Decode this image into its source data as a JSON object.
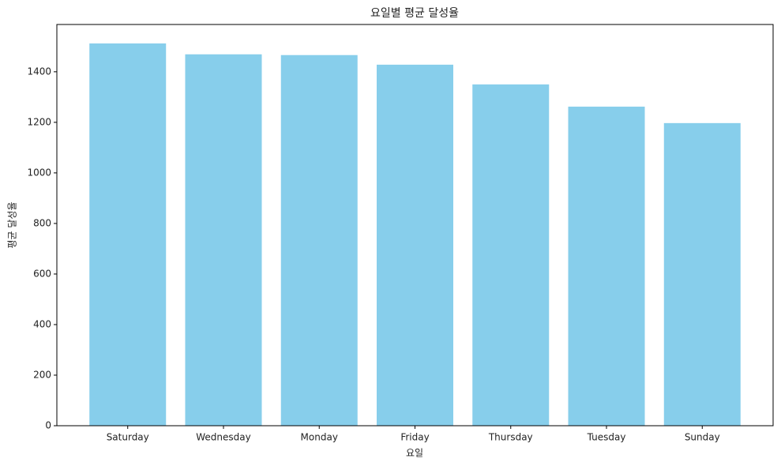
{
  "chart_data": {
    "type": "bar",
    "title": "요일별 평균 달성율",
    "x_label": "요일",
    "y_label": "평균 달성율",
    "categories": [
      "Saturday",
      "Wednesday",
      "Monday",
      "Friday",
      "Thursday",
      "Tuesday",
      "Sunday"
    ],
    "values": [
      1512,
      1469,
      1466,
      1428,
      1350,
      1262,
      1197
    ],
    "color": "#87ceeb",
    "ylim": [
      0,
      1587
    ],
    "yticks": [
      0,
      200,
      400,
      600,
      800,
      1000,
      1200,
      1400
    ],
    "grid": false
  }
}
